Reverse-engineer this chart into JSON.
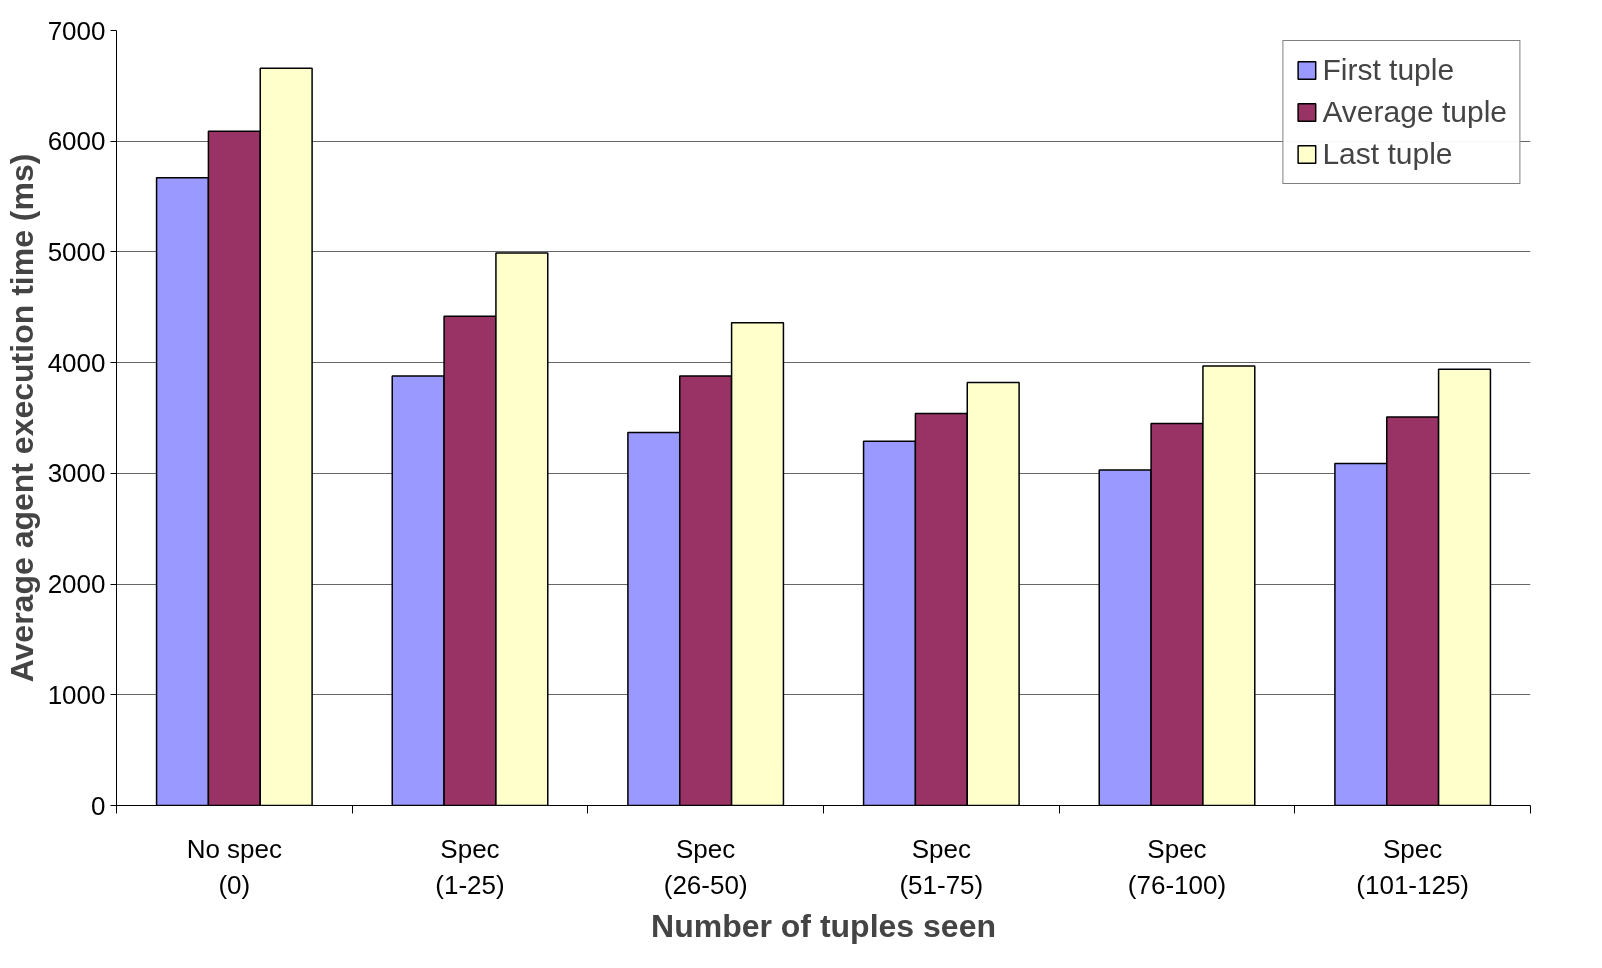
{
  "chart_data": {
    "type": "bar",
    "xlabel": "Number of tuples seen",
    "ylabel": "Average agent execution time (ms)",
    "categories": [
      "No spec\n(0)",
      "Spec\n(1-25)",
      "Spec\n(26-50)",
      "Spec\n(51-75)",
      "Spec\n(76-100)",
      "Spec\n(101-125)"
    ],
    "series": [
      {
        "name": "First tuple",
        "color": "#9999ff",
        "values": [
          5670,
          3880,
          3370,
          3290,
          3030,
          3090
        ]
      },
      {
        "name": "Average tuple",
        "color": "#993366",
        "values": [
          6090,
          4420,
          3880,
          3540,
          3450,
          3510
        ]
      },
      {
        "name": "Last tuple",
        "color": "#ffffcc",
        "values": [
          6660,
          4990,
          4360,
          3820,
          3970,
          3940
        ]
      }
    ],
    "ylim": [
      0,
      7000
    ],
    "yticks": [
      0,
      1000,
      2000,
      3000,
      4000,
      5000,
      6000,
      7000
    ],
    "grid": "y",
    "legend": "top right"
  }
}
